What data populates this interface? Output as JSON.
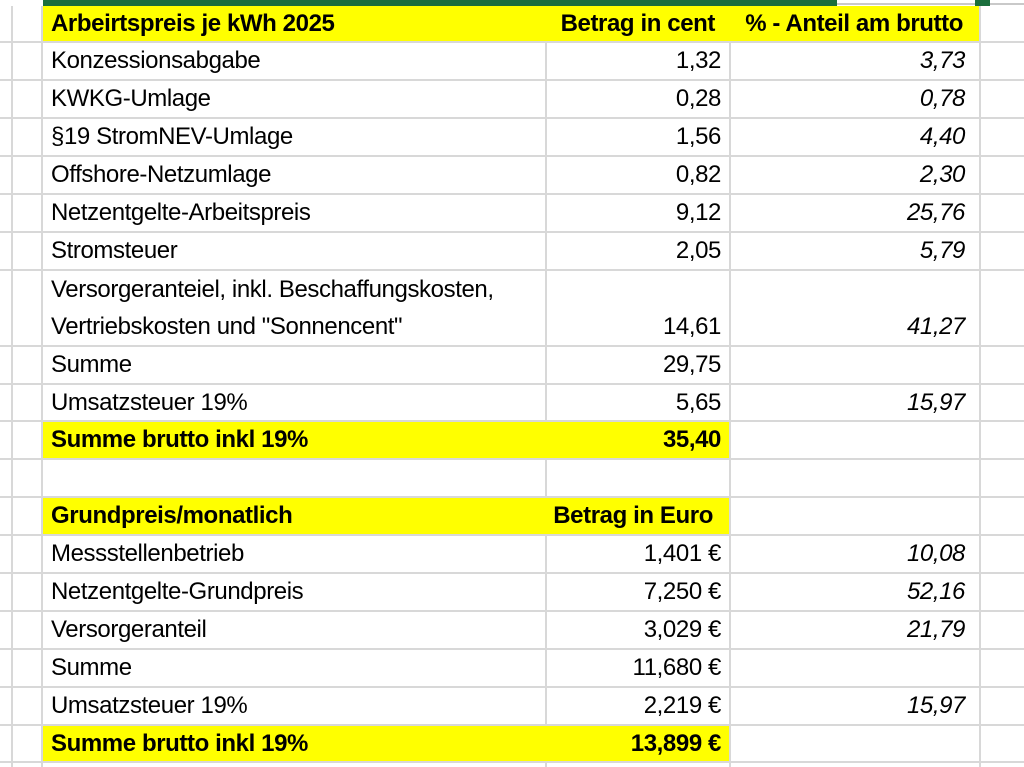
{
  "colors": {
    "header_green": "#1a6e3c",
    "highlight_yellow": "#ffff00",
    "gridline": "#d8d8d8"
  },
  "table1": {
    "title": "Arbeirtspreis je kWh 2025",
    "col_amount": "Betrag in cent",
    "col_percent": "% - Anteil am brutto",
    "rows": [
      {
        "label": "Konzessionsabgabe",
        "amount": "1,32",
        "percent": "3,73"
      },
      {
        "label": "KWKG-Umlage",
        "amount": "0,28",
        "percent": "0,78"
      },
      {
        "label": "§19 StromNEV-Umlage",
        "amount": "1,56",
        "percent": "4,40"
      },
      {
        "label": "Offshore-Netzumlage",
        "amount": "0,82",
        "percent": "2,30"
      },
      {
        "label": "Netzentgelte-Arbeitspreis",
        "amount": "9,12",
        "percent": "25,76"
      },
      {
        "label": "Stromsteuer",
        "amount": "2,05",
        "percent": "5,79"
      }
    ],
    "supplier_row": {
      "label_line1": "Versorgeranteiel, inkl. Beschaffungskosten,",
      "label_line2": "Vertriebskosten und \"Sonnencent\"",
      "amount": "14,61",
      "percent": "41,27"
    },
    "sum_row": {
      "label": "Summe",
      "amount": "29,75",
      "percent": ""
    },
    "vat_row": {
      "label": "Umsatzsteuer 19%",
      "amount": "5,65",
      "percent": "15,97"
    },
    "total_row": {
      "label": "Summe brutto inkl 19%",
      "amount": "35,40",
      "percent": ""
    }
  },
  "table2": {
    "title": "Grundpreis/monatlich",
    "col_amount": "Betrag in Euro",
    "rows": [
      {
        "label": "Messstellenbetrieb",
        "amount": "1,401 €",
        "percent": "10,08"
      },
      {
        "label": "Netzentgelte-Grundpreis",
        "amount": "7,250 €",
        "percent": "52,16"
      },
      {
        "label": "Versorgeranteil",
        "amount": "3,029 €",
        "percent": "21,79"
      },
      {
        "label": "Summe",
        "amount": "11,680 €",
        "percent": ""
      },
      {
        "label": "Umsatzsteuer 19%",
        "amount": "2,219 €",
        "percent": "15,97"
      }
    ],
    "total_row": {
      "label": "Summe brutto inkl 19%",
      "amount": "13,899 €",
      "percent": ""
    }
  }
}
